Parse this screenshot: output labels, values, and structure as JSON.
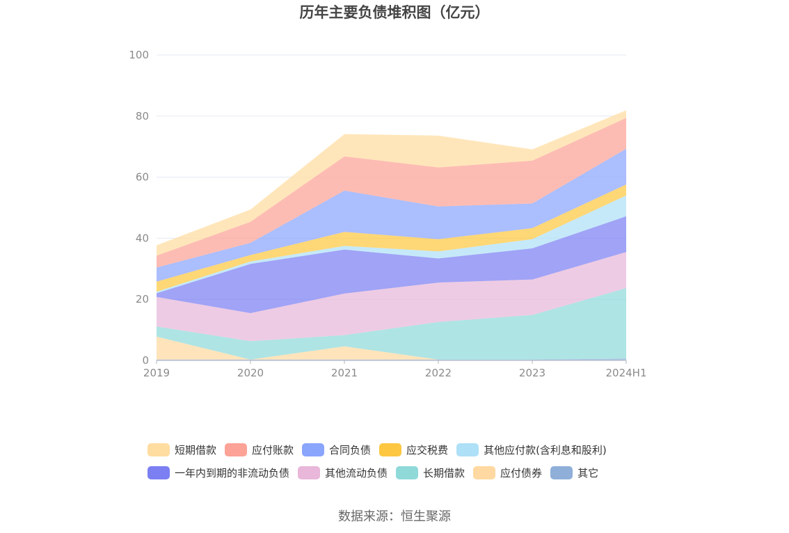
{
  "chart_data": {
    "type": "area",
    "stacked": true,
    "title": "历年主要负债堆积图（亿元）",
    "source": "数据来源：恒生聚源",
    "categories": [
      "2019",
      "2020",
      "2021",
      "2022",
      "2023",
      "2024H1"
    ],
    "ylim": [
      0,
      100
    ],
    "yticks": [
      0,
      20,
      40,
      60,
      80,
      100
    ],
    "grid": true,
    "legend_position": "bottom",
    "series": [
      {
        "name": "其它",
        "color": "#8fafd9",
        "values": [
          0.3,
          0.3,
          0.3,
          0.3,
          0.3,
          0.6
        ]
      },
      {
        "name": "应付债券",
        "color": "#ffd9a1",
        "values": [
          7.5,
          0,
          4.3,
          0,
          0,
          0
        ]
      },
      {
        "name": "长期借款",
        "color": "#8fd9d9",
        "values": [
          3.3,
          6.0,
          3.7,
          12.3,
          14.6,
          23.1
        ]
      },
      {
        "name": "其他流动负债",
        "color": "#e8b7d9",
        "values": [
          9.7,
          9.2,
          13.6,
          12.9,
          11.6,
          11.8
        ]
      },
      {
        "name": "一年内到期的非流动负债",
        "color": "#7b7ff2",
        "values": [
          1.2,
          16.1,
          14.4,
          7.9,
          10.2,
          11.7
        ]
      },
      {
        "name": "其他应付款(含利息和股利)",
        "color": "#aee0f7",
        "values": [
          0.5,
          0.8,
          1.2,
          2.3,
          3.0,
          6.8
        ]
      },
      {
        "name": "应交税费",
        "color": "#fdc741",
        "values": [
          3.3,
          2.1,
          4.6,
          4.0,
          3.6,
          3.6
        ]
      },
      {
        "name": "合同负债",
        "color": "#8aa5fc",
        "values": [
          4.6,
          4.0,
          13.5,
          10.7,
          8.1,
          11.7
        ]
      },
      {
        "name": "应付账款",
        "color": "#fca296",
        "values": [
          3.9,
          6.9,
          11.2,
          12.8,
          14.0,
          10.1
        ]
      },
      {
        "name": "短期借款",
        "color": "#ffdca0",
        "values": [
          3.4,
          4.0,
          7.3,
          10.4,
          3.7,
          2.5
        ]
      }
    ],
    "legend": [
      [
        "短期借款",
        "应付账款",
        "合同负债",
        "应交税费",
        "其他应付款(含利息和股利)"
      ],
      [
        "一年内到期的非流动负债",
        "其他流动负债",
        "长期借款",
        "应付债券",
        "其它"
      ]
    ]
  }
}
